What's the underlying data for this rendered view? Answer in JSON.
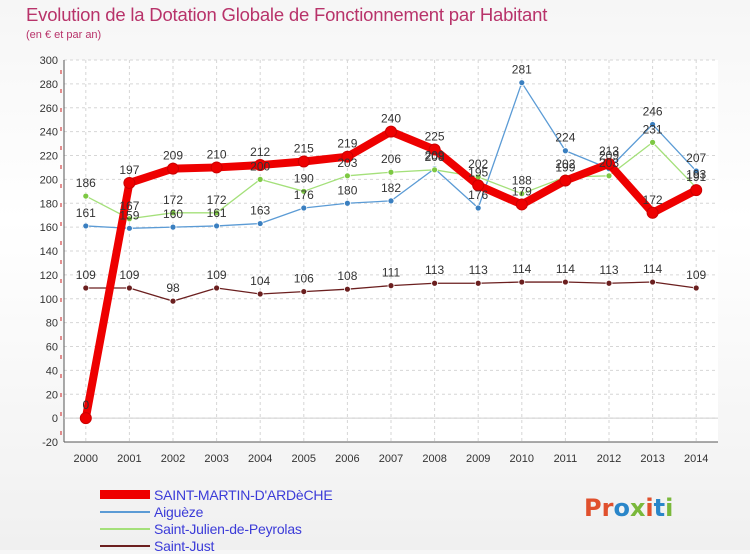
{
  "title": "Evolution de la Dotation Globale de Fonctionnement par Habitant",
  "subtitle": "(en € et par an)",
  "logo": {
    "text": "Proxiti",
    "colors": [
      "#e0502d",
      "#e0502d",
      "#2a86c9",
      "#7ab83b",
      "#e0502d",
      "#2a86c9",
      "#7ab83b"
    ]
  },
  "chart_data": {
    "type": "line",
    "title": "Evolution de la Dotation Globale de Fonctionnement par Habitant",
    "ylabel": "(en € et par an)",
    "xlabel": "",
    "x": [
      "2000",
      "2001",
      "2002",
      "2003",
      "2004",
      "2005",
      "2006",
      "2007",
      "2008",
      "2009",
      "2010",
      "2011",
      "2012",
      "2013",
      "2014"
    ],
    "ylim": [
      -20,
      300
    ],
    "yticks": [
      -20,
      0,
      20,
      40,
      60,
      80,
      100,
      120,
      140,
      160,
      180,
      200,
      220,
      240,
      260,
      280,
      300
    ],
    "series": [
      {
        "name": "Saint-Just",
        "color": "#6b1f1f",
        "marker": "#6b1f1f",
        "values": [
          109,
          109,
          98,
          109,
          104,
          106,
          108,
          111,
          113,
          113,
          114,
          114,
          113,
          114,
          109
        ]
      },
      {
        "name": "Aiguèze",
        "color": "#5b9bd5",
        "marker": "#3a7fc0",
        "values": [
          161,
          159,
          160,
          161,
          163,
          176,
          180,
          182,
          209,
          176,
          281,
          224,
          209,
          246,
          207
        ]
      },
      {
        "name": "Saint-Julien-de-Peyrolas",
        "color": "#a4e07a",
        "marker": "#7dc843",
        "values": [
          186,
          167,
          172,
          172,
          200,
          190,
          203,
          206,
          208,
          202,
          188,
          202,
          203,
          231,
          193
        ]
      },
      {
        "name": "SAINT-MARTIN-D'ARDèCHE",
        "color": "#ee0000",
        "marker": "#ee0000",
        "values": [
          0,
          197,
          209,
          210,
          212,
          215,
          219,
          240,
          225,
          195,
          179,
          199,
          213,
          172,
          191
        ]
      }
    ],
    "legend": [
      "SAINT-MARTIN-D'ARDèCHE",
      "Aiguèze",
      "Saint-Julien-de-Peyrolas",
      "Saint-Just"
    ],
    "legend_position": "bottom-left"
  }
}
